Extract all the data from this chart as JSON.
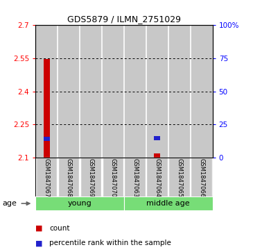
{
  "title": "GDS5879 / ILMN_2751029",
  "samples": [
    "GSM1847067",
    "GSM1847068",
    "GSM1847069",
    "GSM1847070",
    "GSM1847063",
    "GSM1847064",
    "GSM1847065",
    "GSM1847066"
  ],
  "ylim_left": [
    2.1,
    2.7
  ],
  "ylim_right": [
    0,
    100
  ],
  "yticks_left": [
    2.1,
    2.25,
    2.4,
    2.55,
    2.7
  ],
  "yticks_right": [
    0,
    25,
    50,
    75,
    100
  ],
  "ytick_labels_left": [
    "2.1",
    "2.25",
    "2.4",
    "2.55",
    "2.7"
  ],
  "ytick_labels_right": [
    "0",
    "25",
    "50",
    "75",
    "100%"
  ],
  "red_bars": [
    2.548,
    0,
    0,
    0,
    0,
    2.118,
    0,
    0
  ],
  "blue_vals": [
    2.175,
    0,
    0,
    0,
    0,
    2.178,
    0,
    0
  ],
  "bar_bottom": 2.1,
  "blue_bar_height": 0.018,
  "red_color": "#cc0000",
  "blue_color": "#2222cc",
  "sample_bg_color": "#c8c8c8",
  "young_color": "#77dd77",
  "middle_age_color": "#77dd77",
  "legend_red_label": "count",
  "legend_blue_label": "percentile rank within the sample",
  "age_label": "age",
  "grid_color": "black",
  "title_fontsize": 9,
  "tick_fontsize": 7.5,
  "sample_fontsize": 6,
  "group_fontsize": 8,
  "legend_fontsize": 7.5
}
